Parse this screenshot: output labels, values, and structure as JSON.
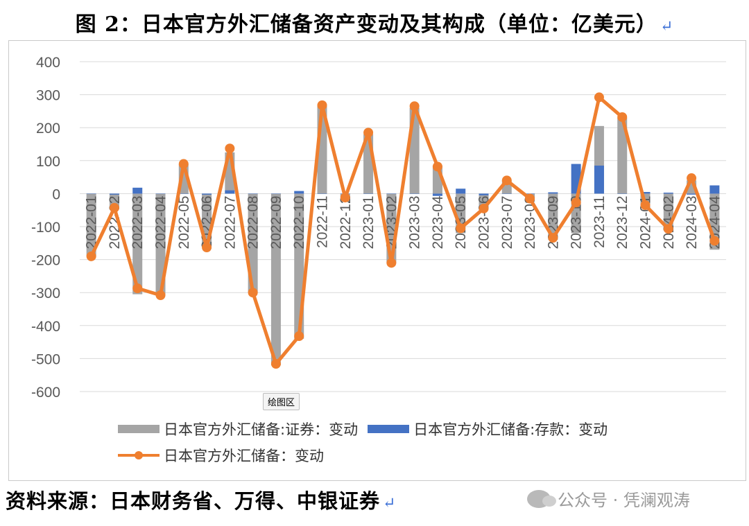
{
  "title": "图 2：日本官方外汇储备资产变动及其构成（单位：亿美元）",
  "return_mark": "↵",
  "tooltip": "绘图区",
  "source": "资料来源：日本财务省、万得、中银证券",
  "watermark": "公众号 · 凭澜观涛",
  "colors": {
    "securities": "#a5a5a5",
    "deposits": "#4472c4",
    "total": "#ef7f2f",
    "grid": "#d9d9d9"
  },
  "chart_data": {
    "type": "bar",
    "title": "",
    "xlabel": "",
    "ylabel": "",
    "ylim": [
      -600,
      400
    ],
    "yticks": [
      400,
      300,
      200,
      100,
      0,
      -100,
      -200,
      -300,
      -400,
      -500,
      -600
    ],
    "grid": true,
    "legend": "bottom",
    "categories": [
      "2022-01",
      "2022-02",
      "2022-03",
      "2022-04",
      "2022-05",
      "2022-06",
      "2022-07",
      "2022-08",
      "2022-09",
      "2022-10",
      "2022-11",
      "2022-12",
      "2023-01",
      "2023-02",
      "2023-03",
      "2023-04",
      "2023-05",
      "2023-06",
      "2023-07",
      "2023-08",
      "2023-09",
      "2023-10",
      "2023-11",
      "2023-12",
      "2024-01",
      "2024-02",
      "2024-03",
      "2024-04"
    ],
    "series": [
      {
        "name": "日本官方外汇储备:证券：变动",
        "type": "bar",
        "values": [
          -190,
          -40,
          -305,
          -308,
          90,
          -160,
          125,
          -300,
          -520,
          -440,
          270,
          -12,
          180,
          -210,
          260,
          85,
          -120,
          -40,
          40,
          -15,
          -140,
          -120,
          205,
          230,
          -40,
          -110,
          40,
          -170
        ]
      },
      {
        "name": "日本官方外汇储备:存款：变动",
        "type": "bar",
        "values": [
          0,
          -3,
          18,
          0,
          0,
          -3,
          10,
          0,
          0,
          8,
          0,
          0,
          0,
          0,
          0,
          -7,
          15,
          -5,
          0,
          0,
          4,
          90,
          85,
          0,
          5,
          3,
          -3,
          25
        ]
      },
      {
        "name": "日本官方外汇储备：变动",
        "type": "line",
        "values": [
          -190,
          -43,
          -287,
          -308,
          90,
          -163,
          137,
          -300,
          -516,
          -432,
          268,
          -12,
          185,
          -210,
          265,
          82,
          -105,
          -45,
          40,
          -15,
          -134,
          -27,
          292,
          232,
          -35,
          -107,
          47,
          -143
        ]
      }
    ]
  }
}
